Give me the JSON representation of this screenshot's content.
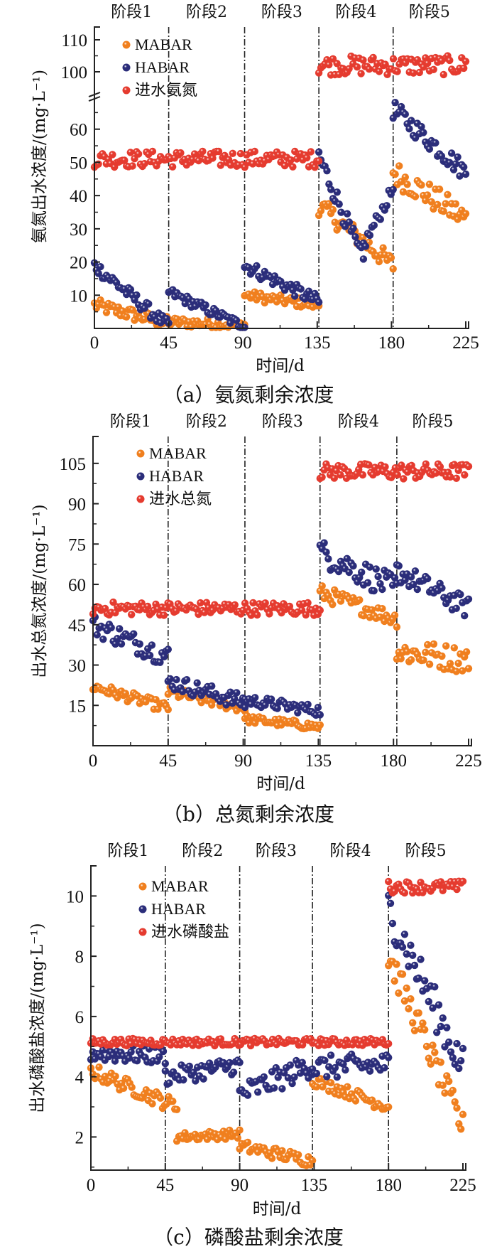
{
  "colors": {
    "MABAR": "#f07f1e",
    "HABAR": "#2b2d7a",
    "influent": "#e53b2f",
    "axis": "#222222"
  },
  "chart_data": [
    {
      "id": "a",
      "type": "scatter",
      "caption": "（a）氨氮剩余浓度",
      "xlabel": "时间/d",
      "ylabel": "氨氮出水浓度/(mg·L⁻¹)",
      "xlim": [
        0,
        225
      ],
      "xticks": [
        0,
        45,
        90,
        135,
        180,
        225
      ],
      "ylim_lower": [
        0,
        70
      ],
      "ylim_upper": [
        94,
        114
      ],
      "axis_break": true,
      "yticks_lower": [
        10,
        20,
        30,
        40,
        50,
        60
      ],
      "yticks_upper": [
        100,
        110
      ],
      "stage_dividers": [
        45,
        91,
        136,
        181
      ],
      "stages": [
        "阶段1",
        "阶段2",
        "阶段3",
        "阶段4",
        "阶段5"
      ],
      "legend": [
        "MABAR",
        "HABAR",
        "进水氨氮"
      ],
      "legend_position": "top-left",
      "series": [
        {
          "name": "MABAR",
          "segments": [
            {
              "x": [
                0,
                45
              ],
              "start": 7,
              "end": 1.5,
              "noise": 2
            },
            {
              "x": [
                45,
                91
              ],
              "start": 2,
              "end": 1,
              "noise": 1.5
            },
            {
              "x": [
                91,
                136
              ],
              "start": 10,
              "end": 7,
              "noise": 1.5
            },
            {
              "x": [
                136,
                181
              ],
              "start": 37,
              "end": 19,
              "noise": 3
            },
            {
              "x": [
                181,
                225
              ],
              "start": 47,
              "end": 33,
              "noise": 4
            }
          ]
        },
        {
          "name": "HABAR",
          "segments": [
            {
              "x": [
                0,
                45
              ],
              "start": 19,
              "end": 0.5,
              "noise": 2
            },
            {
              "x": [
                45,
                91
              ],
              "start": 11,
              "end": 0.5,
              "noise": 1.5
            },
            {
              "x": [
                91,
                136
              ],
              "start": 19,
              "end": 8,
              "noise": 2
            },
            {
              "x": [
                136,
                163
              ],
              "start": 52,
              "end": 20,
              "noise": 3
            },
            {
              "x": [
                163,
                181
              ],
              "start": 25,
              "end": 42,
              "noise": 2
            },
            {
              "x": [
                181,
                225
              ],
              "start": 66,
              "end": 47,
              "noise": 3
            }
          ]
        },
        {
          "name": "进水氨氮",
          "segments": [
            {
              "x": [
                0,
                136
              ],
              "start": 51,
              "end": 51,
              "noise": 2.5
            },
            {
              "x": [
                136,
                225
              ],
              "start": 102,
              "end": 102,
              "noise": 3
            }
          ]
        }
      ]
    },
    {
      "id": "b",
      "type": "scatter",
      "caption": "（b）总氮剩余浓度",
      "xlabel": "时间/d",
      "ylabel": "出水总氮浓度/(mg·L⁻¹)",
      "xlim": [
        0,
        225
      ],
      "xticks": [
        0,
        45,
        90,
        135,
        180,
        225
      ],
      "ylim": [
        0,
        115
      ],
      "yticks": [
        15,
        30,
        45,
        60,
        75,
        90,
        105
      ],
      "stage_dividers": [
        45,
        91,
        136,
        182
      ],
      "stages": [
        "阶段1",
        "阶段2",
        "阶段3",
        "阶段4",
        "阶段5"
      ],
      "legend": [
        "MABAR",
        "HABAR",
        "进水总氮"
      ],
      "legend_position": "top-left",
      "series": [
        {
          "name": "MABAR",
          "segments": [
            {
              "x": [
                0,
                45
              ],
              "start": 22,
              "end": 14,
              "noise": 2
            },
            {
              "x": [
                45,
                91
              ],
              "start": 20,
              "end": 14,
              "noise": 2
            },
            {
              "x": [
                91,
                136
              ],
              "start": 10,
              "end": 7,
              "noise": 1.5
            },
            {
              "x": [
                136,
                182
              ],
              "start": 57,
              "end": 47,
              "noise": 3
            },
            {
              "x": [
                182,
                225
              ],
              "start": 35,
              "end": 32,
              "noise": 5
            }
          ]
        },
        {
          "name": "HABAR",
          "segments": [
            {
              "x": [
                0,
                45
              ],
              "start": 45,
              "end": 33,
              "noise": 4
            },
            {
              "x": [
                45,
                91
              ],
              "start": 24,
              "end": 16,
              "noise": 3
            },
            {
              "x": [
                91,
                136
              ],
              "start": 17,
              "end": 13,
              "noise": 2
            },
            {
              "x": [
                136,
                182
              ],
              "start": 72,
              "end": 58,
              "noise": 5
            },
            {
              "x": [
                182,
                225
              ],
              "start": 65,
              "end": 51,
              "noise": 4
            }
          ]
        },
        {
          "name": "进水总氮",
          "segments": [
            {
              "x": [
                0,
                136
              ],
              "start": 51,
              "end": 51,
              "noise": 2.5
            },
            {
              "x": [
                136,
                225
              ],
              "start": 102,
              "end": 102,
              "noise": 3
            }
          ]
        }
      ]
    },
    {
      "id": "c",
      "type": "scatter",
      "caption": "（c）磷酸盐剩余浓度",
      "xlabel": "时间/d",
      "ylabel": "出水磷酸盐浓度/(mg·L⁻¹)",
      "xlim": [
        0,
        225
      ],
      "xticks": [
        0,
        45,
        90,
        135,
        180,
        225
      ],
      "ylim": [
        0.9,
        11
      ],
      "yticks": [
        2,
        4,
        6,
        8,
        10
      ],
      "stage_dividers": [
        45,
        90,
        134,
        180
      ],
      "stages": [
        "阶段1",
        "阶段2",
        "阶段3",
        "阶段4",
        "阶段5"
      ],
      "legend": [
        "MABAR",
        "HABAR",
        "进水磷酸盐"
      ],
      "legend_position": "top-left",
      "series": [
        {
          "name": "MABAR",
          "segments": [
            {
              "x": [
                0,
                52
              ],
              "start": 4.2,
              "end": 3.0,
              "noise": 0.25
            },
            {
              "x": [
                52,
                90
              ],
              "start": 2.0,
              "end": 2.1,
              "noise": 0.15
            },
            {
              "x": [
                90,
                134
              ],
              "start": 1.7,
              "end": 1.2,
              "noise": 0.2
            },
            {
              "x": [
                134,
                180
              ],
              "start": 3.9,
              "end": 3.0,
              "noise": 0.2
            },
            {
              "x": [
                180,
                225
              ],
              "start": 8.0,
              "end": 2.3,
              "noise": 0.5
            }
          ]
        },
        {
          "name": "HABAR",
          "segments": [
            {
              "x": [
                0,
                45
              ],
              "start": 4.8,
              "end": 4.7,
              "noise": 0.3
            },
            {
              "x": [
                45,
                90
              ],
              "start": 4.0,
              "end": 4.4,
              "noise": 0.3
            },
            {
              "x": [
                90,
                134
              ],
              "start": 3.4,
              "end": 4.4,
              "noise": 0.4
            },
            {
              "x": [
                134,
                180
              ],
              "start": 4.3,
              "end": 4.4,
              "noise": 0.4
            },
            {
              "x": [
                180,
                225
              ],
              "start": 9.6,
              "end": 4.3,
              "noise": 0.7
            }
          ]
        },
        {
          "name": "进水磷酸盐",
          "segments": [
            {
              "x": [
                0,
                180
              ],
              "start": 5.15,
              "end": 5.15,
              "noise": 0.12
            },
            {
              "x": [
                180,
                225
              ],
              "start": 10.3,
              "end": 10.3,
              "noise": 0.2
            }
          ]
        }
      ]
    }
  ]
}
